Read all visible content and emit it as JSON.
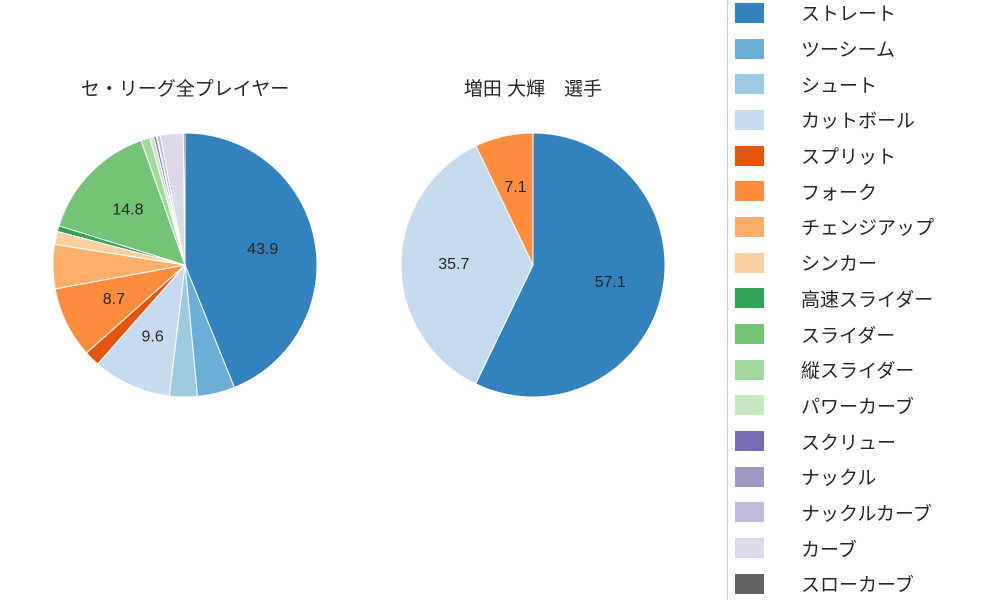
{
  "chart_data": [
    {
      "type": "pie",
      "title": "セ・リーグ全プレイヤー",
      "direction": "clockwise",
      "start_angle_deg": 0,
      "categories": [
        "ストレート",
        "ツーシーム",
        "シュート",
        "カットボール",
        "スプリット",
        "フォーク",
        "チェンジアップ",
        "シンカー",
        "高速スライダー",
        "スライダー",
        "縦スライダー",
        "パワーカーブ",
        "スクリュー",
        "ナックル",
        "ナックルカーブ",
        "カーブ",
        "スローカーブ"
      ],
      "values": [
        43.9,
        4.6,
        3.4,
        9.6,
        1.9,
        8.7,
        5.4,
        1.6,
        0.7,
        14.8,
        1.1,
        0.5,
        0.3,
        0.1,
        0.4,
        2.8,
        0.2
      ],
      "slice_labels": [
        "43.9",
        "",
        "",
        "9.6",
        "",
        "8.7",
        "",
        "",
        "",
        "14.8",
        "",
        "",
        "",
        "",
        "",
        "",
        ""
      ],
      "colors": [
        "#3182bd",
        "#6baed6",
        "#9ecae1",
        "#c6dbef",
        "#e6550d",
        "#fd8d3c",
        "#fdae6b",
        "#fdd0a2",
        "#31a354",
        "#74c476",
        "#a1d99b",
        "#c7e9c0",
        "#756bb1",
        "#9e9ac8",
        "#bcbddc",
        "#dadaeb",
        "#636363"
      ]
    },
    {
      "type": "pie",
      "title": "増田 大輝　選手",
      "direction": "clockwise",
      "start_angle_deg": 0,
      "categories": [
        "ストレート",
        "カットボール",
        "フォーク"
      ],
      "values": [
        57.1,
        35.7,
        7.1
      ],
      "slice_labels": [
        "57.1",
        "35.7",
        "7.1"
      ],
      "colors": [
        "#3182bd",
        "#c6dbef",
        "#fd8d3c"
      ]
    }
  ],
  "legend": {
    "position": "right",
    "entries": [
      {
        "label": "ストレート",
        "color": "#3182bd"
      },
      {
        "label": "ツーシーム",
        "color": "#6baed6"
      },
      {
        "label": "シュート",
        "color": "#9ecae1"
      },
      {
        "label": "カットボール",
        "color": "#c6dbef"
      },
      {
        "label": "スプリット",
        "color": "#e6550d"
      },
      {
        "label": "フォーク",
        "color": "#fd8d3c"
      },
      {
        "label": "チェンジアップ",
        "color": "#fdae6b"
      },
      {
        "label": "シンカー",
        "color": "#fdd0a2"
      },
      {
        "label": "高速スライダー",
        "color": "#31a354"
      },
      {
        "label": "スライダー",
        "color": "#74c476"
      },
      {
        "label": "縦スライダー",
        "color": "#a1d99b"
      },
      {
        "label": "パワーカーブ",
        "color": "#c7e9c0"
      },
      {
        "label": "スクリュー",
        "color": "#756bb1"
      },
      {
        "label": "ナックル",
        "color": "#9e9ac8"
      },
      {
        "label": "ナックルカーブ",
        "color": "#bcbddc"
      },
      {
        "label": "カーブ",
        "color": "#dadaeb"
      },
      {
        "label": "スローカーブ",
        "color": "#636363"
      }
    ]
  }
}
